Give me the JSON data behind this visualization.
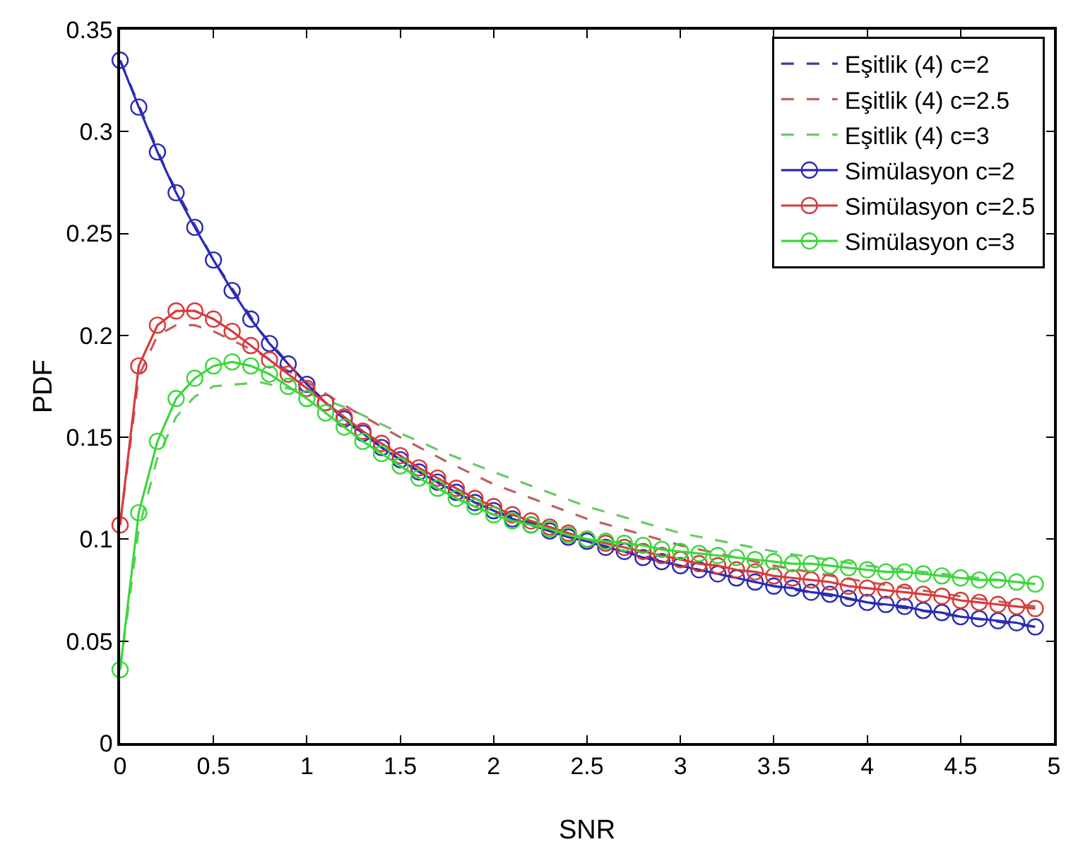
{
  "chart_data": {
    "type": "line",
    "xlabel": "SNR",
    "ylabel": "PDF",
    "xlim": [
      0,
      5
    ],
    "ylim": [
      0,
      0.35
    ],
    "xticks": [
      0,
      0.5,
      1,
      1.5,
      2,
      2.5,
      3,
      3.5,
      4,
      4.5,
      5
    ],
    "yticks": [
      0,
      0.05,
      0.1,
      0.15,
      0.2,
      0.25,
      0.3,
      0.35
    ],
    "grid": false,
    "legend": "top right",
    "series": [
      {
        "name": "Eşitlik (4) c=2",
        "color": "#3a3a9a",
        "line_style": "dashed",
        "marker": "none",
        "x": [
          0,
          0.25,
          0.5,
          0.75,
          1,
          1.25,
          1.5,
          1.75,
          2,
          2.5,
          3,
          3.5,
          4,
          4.5,
          4.9
        ],
        "values": [
          0.335,
          0.28,
          0.237,
          0.202,
          0.176,
          0.155,
          0.139,
          0.125,
          0.114,
          0.099,
          0.087,
          0.077,
          0.069,
          0.062,
          0.057
        ]
      },
      {
        "name": "Eşitlik (4) c=2.5",
        "color": "#c06060",
        "line_style": "dashed",
        "marker": "none",
        "x": [
          0,
          0.1,
          0.2,
          0.3,
          0.4,
          0.5,
          0.75,
          1,
          1.25,
          1.5,
          1.75,
          2,
          2.5,
          3,
          3.5,
          4,
          4.5,
          4.9
        ],
        "values": [
          0.107,
          0.18,
          0.2,
          0.205,
          0.205,
          0.202,
          0.191,
          0.177,
          0.163,
          0.15,
          0.138,
          0.127,
          0.11,
          0.097,
          0.087,
          0.079,
          0.072,
          0.067
        ]
      },
      {
        "name": "Eşitlik (4) c=3",
        "color": "#66cc66",
        "line_style": "dashed",
        "marker": "none",
        "x": [
          0,
          0.1,
          0.2,
          0.3,
          0.4,
          0.5,
          0.75,
          1,
          1.25,
          1.5,
          1.75,
          2,
          2.5,
          3,
          3.5,
          4,
          4.5,
          4.9
        ],
        "values": [
          0.036,
          0.105,
          0.14,
          0.16,
          0.17,
          0.175,
          0.177,
          0.172,
          0.163,
          0.152,
          0.142,
          0.133,
          0.116,
          0.103,
          0.094,
          0.087,
          0.082,
          0.078
        ]
      },
      {
        "name": "Simülasyon c=2",
        "color": "#2b2bb5",
        "line_style": "solid",
        "marker": "circle",
        "x": [
          0,
          0.1,
          0.2,
          0.3,
          0.4,
          0.5,
          0.6,
          0.7,
          0.8,
          0.9,
          1,
          1.1,
          1.2,
          1.3,
          1.4,
          1.5,
          1.6,
          1.7,
          1.8,
          1.9,
          2,
          2.1,
          2.2,
          2.3,
          2.4,
          2.5,
          2.6,
          2.7,
          2.8,
          2.9,
          3,
          3.1,
          3.2,
          3.3,
          3.4,
          3.5,
          3.6,
          3.7,
          3.8,
          3.9,
          4,
          4.1,
          4.2,
          4.3,
          4.4,
          4.5,
          4.6,
          4.7,
          4.8,
          4.9
        ],
        "values": [
          0.335,
          0.312,
          0.29,
          0.27,
          0.253,
          0.237,
          0.222,
          0.208,
          0.196,
          0.186,
          0.176,
          0.167,
          0.159,
          0.152,
          0.145,
          0.139,
          0.133,
          0.128,
          0.123,
          0.118,
          0.114,
          0.11,
          0.107,
          0.104,
          0.101,
          0.099,
          0.096,
          0.094,
          0.091,
          0.089,
          0.087,
          0.085,
          0.083,
          0.081,
          0.079,
          0.077,
          0.076,
          0.074,
          0.073,
          0.071,
          0.069,
          0.068,
          0.067,
          0.065,
          0.064,
          0.062,
          0.061,
          0.06,
          0.059,
          0.057
        ]
      },
      {
        "name": "Simülasyon c=2.5",
        "color": "#d83a3a",
        "line_style": "solid",
        "marker": "circle",
        "x": [
          0,
          0.1,
          0.2,
          0.3,
          0.4,
          0.5,
          0.6,
          0.7,
          0.8,
          0.9,
          1,
          1.1,
          1.2,
          1.3,
          1.4,
          1.5,
          1.6,
          1.7,
          1.8,
          1.9,
          2,
          2.1,
          2.2,
          2.3,
          2.4,
          2.5,
          2.6,
          2.7,
          2.8,
          2.9,
          3,
          3.1,
          3.2,
          3.3,
          3.4,
          3.5,
          3.6,
          3.7,
          3.8,
          3.9,
          4,
          4.1,
          4.2,
          4.3,
          4.4,
          4.5,
          4.6,
          4.7,
          4.8,
          4.9
        ],
        "values": [
          0.107,
          0.185,
          0.205,
          0.212,
          0.212,
          0.208,
          0.202,
          0.195,
          0.188,
          0.181,
          0.174,
          0.167,
          0.16,
          0.153,
          0.147,
          0.141,
          0.135,
          0.13,
          0.125,
          0.12,
          0.116,
          0.112,
          0.109,
          0.106,
          0.103,
          0.1,
          0.098,
          0.096,
          0.094,
          0.092,
          0.09,
          0.088,
          0.087,
          0.085,
          0.084,
          0.082,
          0.081,
          0.08,
          0.079,
          0.077,
          0.076,
          0.075,
          0.074,
          0.073,
          0.072,
          0.07,
          0.069,
          0.068,
          0.067,
          0.066
        ]
      },
      {
        "name": "Simülasyon c=3",
        "color": "#3ad83a",
        "line_style": "solid",
        "marker": "circle",
        "x": [
          0,
          0.1,
          0.2,
          0.3,
          0.4,
          0.5,
          0.6,
          0.7,
          0.8,
          0.9,
          1,
          1.1,
          1.2,
          1.3,
          1.4,
          1.5,
          1.6,
          1.7,
          1.8,
          1.9,
          2,
          2.1,
          2.2,
          2.3,
          2.4,
          2.5,
          2.6,
          2.7,
          2.8,
          2.9,
          3,
          3.1,
          3.2,
          3.3,
          3.4,
          3.5,
          3.6,
          3.7,
          3.8,
          3.9,
          4,
          4.1,
          4.2,
          4.3,
          4.4,
          4.5,
          4.6,
          4.7,
          4.8,
          4.9
        ],
        "values": [
          0.036,
          0.113,
          0.148,
          0.169,
          0.179,
          0.185,
          0.187,
          0.185,
          0.181,
          0.175,
          0.169,
          0.162,
          0.155,
          0.148,
          0.142,
          0.136,
          0.13,
          0.125,
          0.12,
          0.116,
          0.112,
          0.109,
          0.107,
          0.105,
          0.102,
          0.1,
          0.099,
          0.098,
          0.097,
          0.095,
          0.094,
          0.093,
          0.092,
          0.091,
          0.09,
          0.089,
          0.088,
          0.088,
          0.087,
          0.086,
          0.085,
          0.084,
          0.084,
          0.083,
          0.082,
          0.081,
          0.08,
          0.08,
          0.079,
          0.078
        ]
      }
    ]
  }
}
